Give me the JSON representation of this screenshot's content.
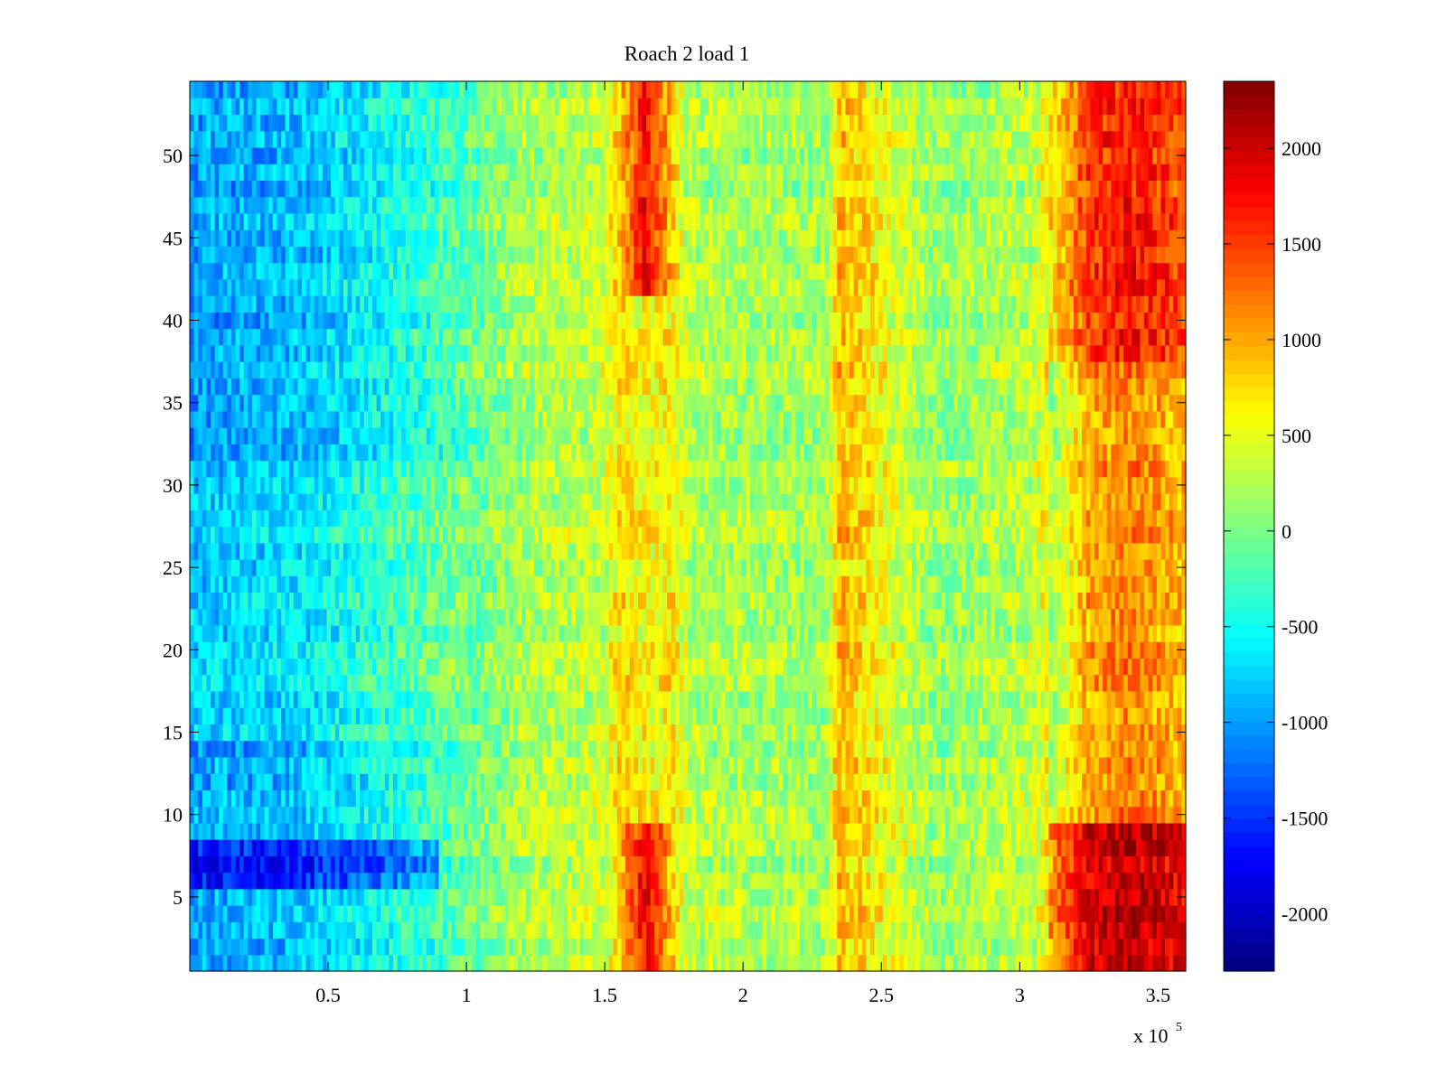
{
  "chart_data": {
    "type": "heatmap",
    "title": "Roach 2 load 1",
    "xlabel": "",
    "ylabel": "",
    "x_multiplier_label": "x 10",
    "x_multiplier_exponent": "5",
    "xlim": [
      0,
      3.6
    ],
    "ylim": [
      0.5,
      54.5
    ],
    "x_ticks": [
      {
        "value": 0.5,
        "label": "0.5"
      },
      {
        "value": 1,
        "label": "1"
      },
      {
        "value": 1.5,
        "label": "1.5"
      },
      {
        "value": 2,
        "label": "2"
      },
      {
        "value": 2.5,
        "label": "2.5"
      },
      {
        "value": 3,
        "label": "3"
      },
      {
        "value": 3.5,
        "label": "3.5"
      }
    ],
    "y_ticks": [
      {
        "value": 5,
        "label": "5"
      },
      {
        "value": 10,
        "label": "10"
      },
      {
        "value": 15,
        "label": "15"
      },
      {
        "value": 20,
        "label": "20"
      },
      {
        "value": 25,
        "label": "25"
      },
      {
        "value": 30,
        "label": "30"
      },
      {
        "value": 35,
        "label": "35"
      },
      {
        "value": 40,
        "label": "40"
      },
      {
        "value": 45,
        "label": "45"
      },
      {
        "value": 50,
        "label": "50"
      }
    ],
    "colorbar": {
      "colormap": "jet",
      "range": [
        -2300,
        2350
      ],
      "ticks": [
        {
          "value": 2000,
          "label": "2000"
        },
        {
          "value": 1500,
          "label": "1500"
        },
        {
          "value": 1000,
          "label": "1000"
        },
        {
          "value": 500,
          "label": "500"
        },
        {
          "value": 0,
          "label": "0"
        },
        {
          "value": -500,
          "label": "-500"
        },
        {
          "value": -1000,
          "label": "-1000"
        },
        {
          "value": -1500,
          "label": "-1500"
        },
        {
          "value": -2000,
          "label": "-2000"
        }
      ]
    },
    "rows": 54,
    "x_profile_approx": [
      {
        "x": 0.0,
        "value": -1000
      },
      {
        "x": 0.4,
        "value": -850
      },
      {
        "x": 0.9,
        "value": -300
      },
      {
        "x": 1.2,
        "value": 200
      },
      {
        "x": 1.5,
        "value": 350
      },
      {
        "x": 1.65,
        "value": 1800
      },
      {
        "x": 1.8,
        "value": 250
      },
      {
        "x": 2.3,
        "value": 150
      },
      {
        "x": 2.35,
        "value": 900
      },
      {
        "x": 2.7,
        "value": 100
      },
      {
        "x": 3.05,
        "value": 300
      },
      {
        "x": 3.25,
        "value": 1500
      },
      {
        "x": 3.4,
        "value": 1700
      },
      {
        "x": 3.6,
        "value": 1400
      }
    ],
    "notable_features": [
      "strong hot bands near x=1.65e5 (rows 1-9 and 42-54)",
      "hot region x=3.1e5 to 3.6e5, strongest at rows 1-9",
      "cold region near x=0 to 0.4e5, coldest at rows 6-8"
    ]
  }
}
